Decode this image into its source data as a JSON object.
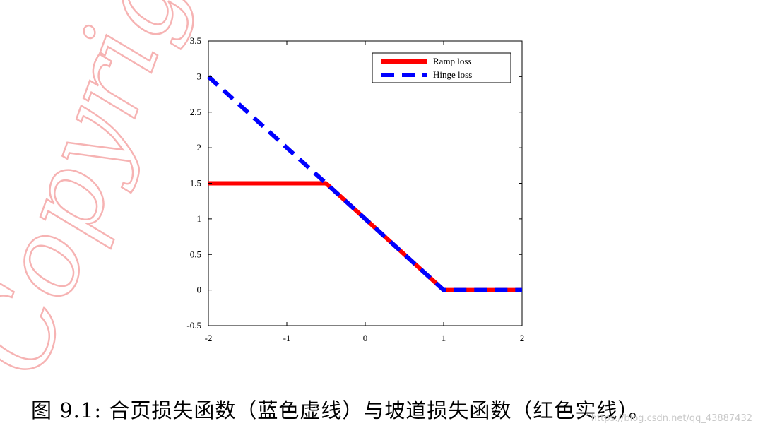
{
  "watermark": {
    "text": "Copyright@",
    "color": "#f6b3b3"
  },
  "caption": "图 9.1: 合页损失函数（蓝色虚线）与坡道损失函数（红色实线）。",
  "credit": "https://blog.csdn.net/qq_43887432",
  "chart_data": {
    "type": "line",
    "title": "",
    "xlabel": "",
    "ylabel": "",
    "xlim": [
      -2,
      2
    ],
    "ylim": [
      -0.5,
      3.5
    ],
    "xticks": [
      -2,
      -1,
      0,
      1,
      2
    ],
    "yticks": [
      -0.5,
      0,
      0.5,
      1,
      1.5,
      2,
      2.5,
      3,
      3.5
    ],
    "xtick_labels": [
      "-2",
      "-1",
      "0",
      "1",
      "2"
    ],
    "ytick_labels": [
      "-0.5",
      "0",
      "0.5",
      "1",
      "1.5",
      "2",
      "2.5",
      "3",
      "3.5"
    ],
    "grid": false,
    "legend_position": "top-right",
    "series": [
      {
        "name": "Ramp loss",
        "color": "#ff0000",
        "style": "solid",
        "x": [
          -2,
          -0.5,
          1,
          2
        ],
        "y": [
          1.5,
          1.5,
          0,
          0
        ]
      },
      {
        "name": "Hinge loss",
        "color": "#0000ff",
        "style": "dashed",
        "x": [
          -2,
          1,
          2
        ],
        "y": [
          3,
          0,
          0
        ]
      }
    ]
  }
}
